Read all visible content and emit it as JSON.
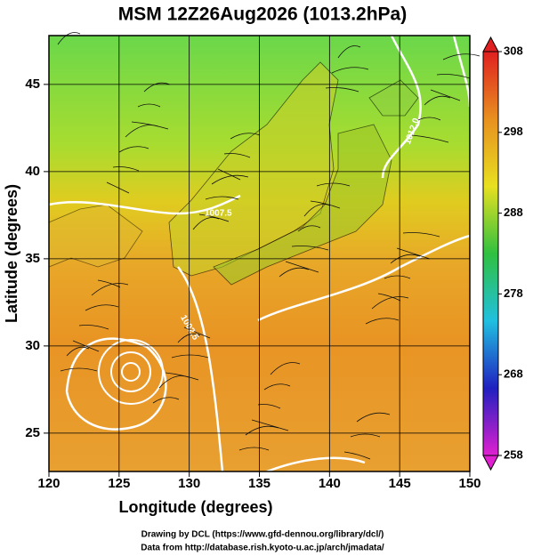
{
  "title": "MSM 12Z26Aug2026 (1013.2hPa)",
  "map": {
    "xlabel": "Longitude (degrees)",
    "ylabel": "Latitude  (degrees)",
    "xlim": [
      120,
      150
    ],
    "ylim": [
      22.8,
      47.8
    ],
    "xticks": [
      120,
      125,
      130,
      135,
      140,
      145,
      150
    ],
    "yticks": [
      25,
      30,
      35,
      40,
      45
    ],
    "grid": true,
    "contour_labels": [
      "1012.0",
      "1007.5",
      "1002.5"
    ]
  },
  "colorbar": {
    "lim": [
      258,
      308
    ],
    "ticks": [
      258,
      268,
      278,
      288,
      298,
      308
    ],
    "colors": [
      "#e020d0",
      "#2020c0",
      "#20c0e0",
      "#30c040",
      "#e8e020",
      "#e89020",
      "#e02020"
    ]
  },
  "credits": [
    "Drawing by DCL (https://www.gfd-dennou.org/library/dcl/)",
    "Data from http://database.rish.kyoto-u.ac.jp/arch/jmadata/"
  ]
}
